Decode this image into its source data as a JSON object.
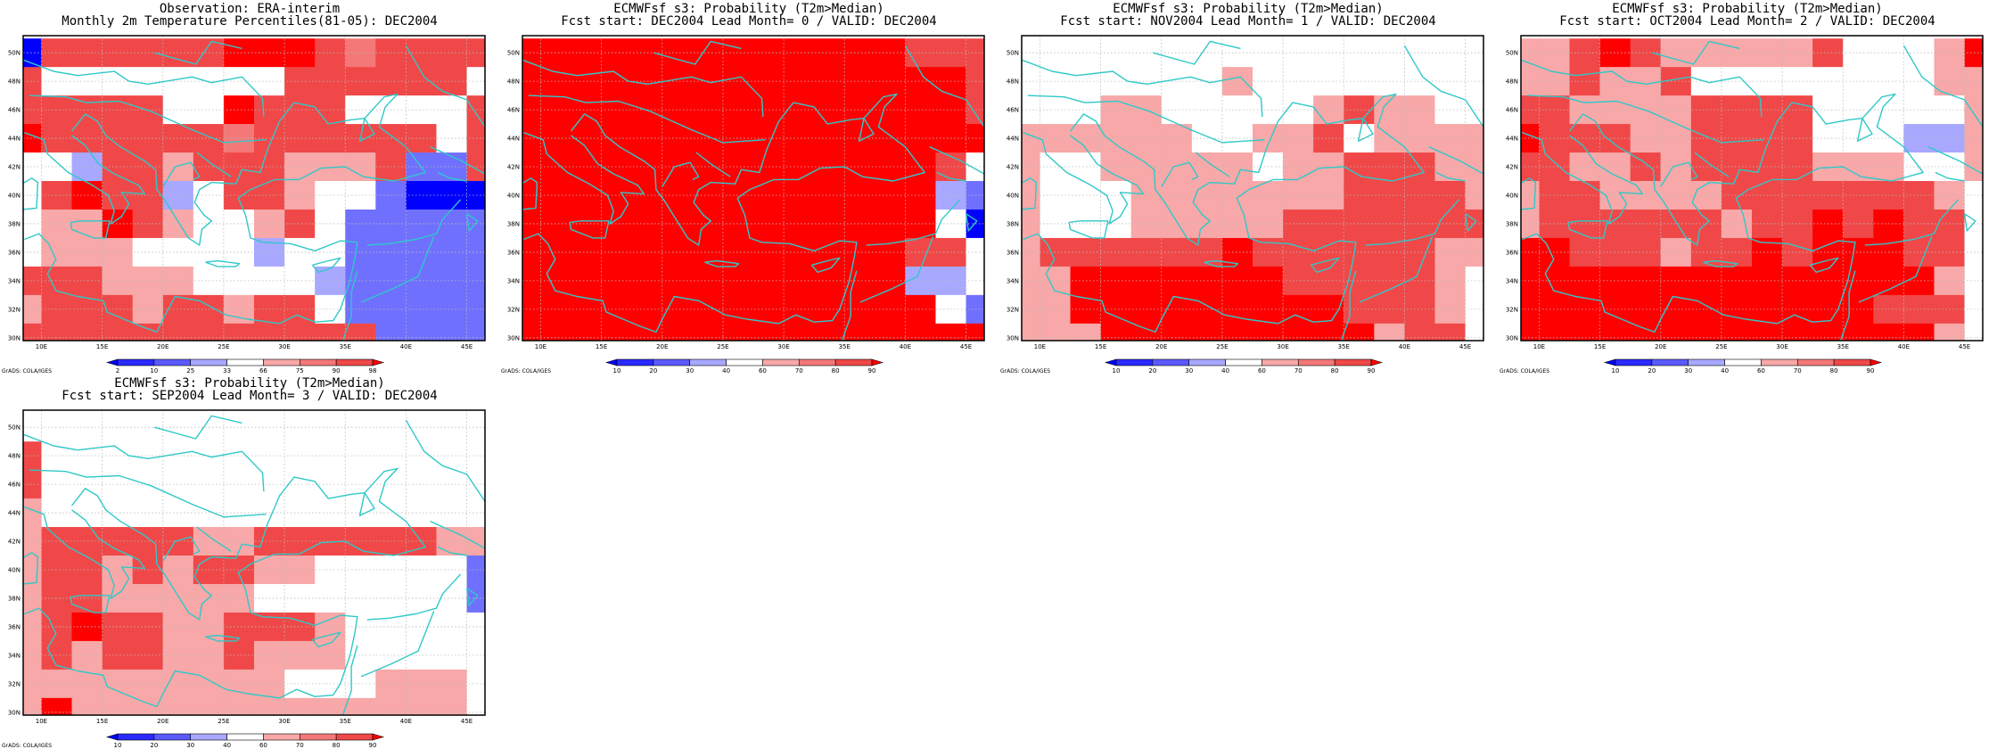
{
  "colors": {
    "red_dark": "#ff0000",
    "red_mid": "#f04848",
    "red_light": "#f47878",
    "pink": "#f8a8a8",
    "white": "#ffffff",
    "blue_light": "#a8a8ff",
    "blue_mid": "#7070ff",
    "blue_dark": "#0000ff",
    "coast": "#30c8c8",
    "grid": "#bbbbbb"
  },
  "panels": [
    {
      "title_line1": "Observation: ERA-interim",
      "title_line2": "Monthly 2m Temperature Percentiles(81-05): DEC2004",
      "colorbar_ticks": [
        "2",
        "10",
        "25",
        "33",
        "66",
        "75",
        "90",
        "98"
      ],
      "credit": "GrADS: COLA/IGES",
      "grid": [
        "b......222.r....",
        ".wwwwwwww......w",
        ".....ww2...wwww.",
        "2......r......w.",
        "wwm..p...ppp.cc.",
        "w.2..mw..pwwabbb",
        "wpp2.pwwp.waaaaa",
        "wpppwwwwlwwaaaaa",
        "...pppwwwwtaaaaa",
        "p...p..p..waaaaa",
        "............aaaa"
      ]
    },
    {
      "title_line1": "ECMWFsf s3: Probability (T2m>Median)",
      "title_line2": "Fcst start: DEC2004  Lead Month= 0 / VALID: DEC2004",
      "colorbar_ticks": [
        "10",
        "20",
        "30",
        "40",
        "60",
        "70",
        "80",
        "90"
      ],
      "credit": "GrADS: COLA/IGES",
      "grid": [
        "2222222222222...",
        "222222222222222.",
        "222222222222222.",
        "2222222222222222",
        "22222222222222.w",
        "22222222222222la",
        "22222222222222wb",
        "2222222222222..w",
        "2222222222222ltw",
        "22222222222222wa",
        "2222222222222222"
      ]
    },
    {
      "title_line1": "ECMWFsf s3: Probability (T2m>Median)",
      "title_line2": "Fcst start: NOV2004  Lead Month= 1 / VALID: DEC2004",
      "colorbar_ticks": [
        "10",
        "20",
        "30",
        "40",
        "60",
        "70",
        "80",
        "90"
      ],
      "credit": "GrADS: COLA/IGES",
      "grid": [
        "wwwwwwwwwwwwwwww",
        "wwwwwwwpwwwwwwww",
        "wwwppwwwwwp.ppww",
        "ppppppwwpp.wpppp",
        "pwwpppppwpp...pp",
        "pwwwppppppp....p",
        "pwwwppppp.......",
        "p......2......pp",
        "pp2222222.....pw",
        "pp222222222...pw",
        "ppp222222222p..w"
      ]
    },
    {
      "title_line1": "ECMWFsf s3: Probability (T2m>Median)",
      "title_line2": "Fcst start: OCT2004  Lead Month= 2 / VALID: DEC2004",
      "colorbar_ticks": [
        "10",
        "20",
        "30",
        "40",
        "60",
        "70",
        "80",
        "90"
      ],
      "credit": "GrADS: COLA/IGES",
      "grid": [
        "pp.2.ppppp.wwwp2",
        "pp.pp.wwwwwwwwpp",
        "..pppp....wwwwwp",
        "2...pp....wwwllp",
        "..pp.p....pppwwp",
        "p..pppp.......pw",
        "p......p..2.2..w",
        "22...p..2.222..w",
        "22222222222222pw",
        "222222222222...w",
        "22222222222222pw"
      ]
    },
    {
      "title_line1": "ECMWFsf s3: Probability (T2m>Median)",
      "title_line2": "Fcst start: SEP2004  Lead Month= 3 / VALID: DEC2004",
      "colorbar_ticks": [
        "10",
        "20",
        "30",
        "40",
        "60",
        "70",
        "80",
        "90"
      ],
      "credit": "GrADS: COLA/IGES",
      "grid": [
        "wwwwwwwwwwwwwwww",
        ".wwwwwwwwwwwwwww",
        ".wwwwwwwwwwwwwww",
        "pwwwwwwwwwwwwwww",
        "p.....pp......pp",
        "p..p.p..ppwwwwwa",
        "p..pppppwwwwwwwa",
        "p.2..pp...pwwwww",
        "p.p..pp.pppwwwww",
        "pppppppppwwwpppw",
        "p2pppppppppppppw"
      ]
    }
  ],
  "map_axes": {
    "lon_labels": [
      "10E",
      "15E",
      "20E",
      "25E",
      "30E",
      "35E",
      "40E",
      "45E"
    ],
    "lat_labels": [
      "30N",
      "32N",
      "34N",
      "36N",
      "38N",
      "40N",
      "42N",
      "44N",
      "46N",
      "48N",
      "50N"
    ]
  }
}
